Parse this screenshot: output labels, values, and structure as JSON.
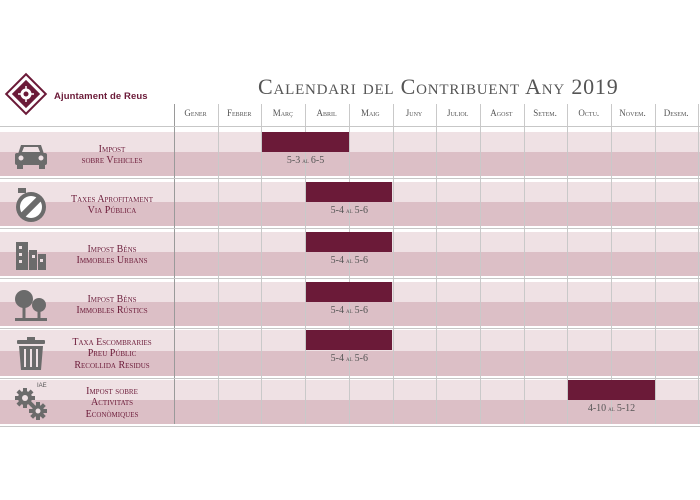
{
  "header": {
    "org_name": "Ajuntament de Reus",
    "title": "Calendari del Contribuent Any 2019"
  },
  "colors": {
    "bar": "#6b1a38",
    "row_light": "#efe1e4",
    "row_dark": "#dcbfc6"
  },
  "chart_data": {
    "type": "gantt",
    "title": "Calendari del Contribuent Any 2019",
    "months": [
      "Gener",
      "Febrer",
      "Març",
      "Abril",
      "Maig",
      "Juny",
      "Juliol",
      "Agost",
      "Setem.",
      "Octu.",
      "Novem.",
      "Desem."
    ],
    "separator": "al",
    "tasks": [
      {
        "name_lines": [
          "Impost",
          "sobre Vehicles"
        ],
        "icon": "car-icon",
        "start_month": 3,
        "end_month": 4,
        "start_label": "5-3",
        "end_label": "6-5"
      },
      {
        "name_lines": [
          "Taxes Aprofitament",
          "Via Pública"
        ],
        "icon": "no-parking-sign-icon",
        "start_month": 4,
        "end_month": 5,
        "start_label": "5-4",
        "end_label": "5-6"
      },
      {
        "name_lines": [
          "Impost Béns",
          "Immobles Urbans"
        ],
        "icon": "buildings-icon",
        "start_month": 4,
        "end_month": 5,
        "start_label": "5-4",
        "end_label": "5-6"
      },
      {
        "name_lines": [
          "Impost Béns",
          "Immobles Rústics"
        ],
        "icon": "trees-icon",
        "start_month": 4,
        "end_month": 5,
        "start_label": "5-4",
        "end_label": "5-6"
      },
      {
        "name_lines": [
          "Taxa Escombraries",
          "Preu Públic",
          "Recollida Residus"
        ],
        "icon": "trash-bin-icon",
        "start_month": 4,
        "end_month": 5,
        "start_label": "5-4",
        "end_label": "5-6"
      },
      {
        "name_lines": [
          "Impost sobre",
          "Activitats",
          "Econòmiques"
        ],
        "icon": "gears-icon",
        "icon_caption": "IAE",
        "start_month": 10,
        "end_month": 11,
        "start_label": "4-10",
        "end_label": "5-12"
      }
    ]
  }
}
